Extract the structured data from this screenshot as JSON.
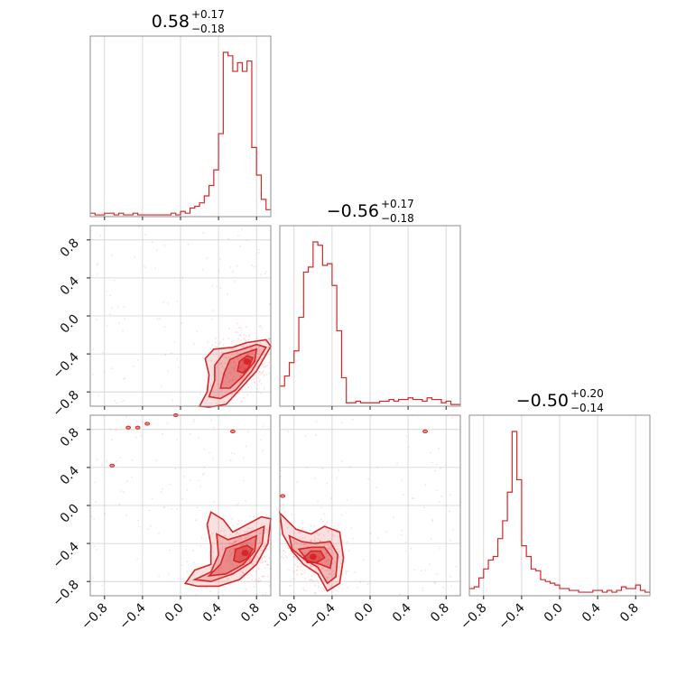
{
  "chart_data": {
    "type": "corner",
    "parameters": [
      {
        "title_value": "0.58",
        "title_plus": "+0.17",
        "title_minus": "−0.18"
      },
      {
        "title_value": "−0.56",
        "title_plus": "+0.17",
        "title_minus": "−0.18"
      },
      {
        "title_value": "−0.50",
        "title_plus": "+0.20",
        "title_minus": "−0.14"
      }
    ],
    "axis_range": [
      -0.95,
      0.95
    ],
    "ticks": [
      -0.8,
      -0.4,
      0.0,
      0.4,
      0.8
    ],
    "tick_labels": [
      "−0.8",
      "−0.4",
      "0.0",
      "0.4",
      "0.8"
    ],
    "grid": true,
    "color": "#d62728",
    "histograms": [
      {
        "param": 0,
        "bin_edges": [
          -0.95,
          -0.9,
          -0.85,
          -0.8,
          -0.75,
          -0.7,
          -0.65,
          -0.6,
          -0.55,
          -0.5,
          -0.45,
          -0.4,
          -0.35,
          -0.3,
          -0.25,
          -0.2,
          -0.15,
          -0.1,
          -0.05,
          0.0,
          0.05,
          0.1,
          0.15,
          0.2,
          0.25,
          0.3,
          0.35,
          0.4,
          0.45,
          0.5,
          0.55,
          0.6,
          0.65,
          0.7,
          0.75,
          0.8,
          0.85,
          0.9,
          0.95
        ],
        "counts": [
          2,
          1,
          1,
          2,
          2,
          1,
          2,
          1,
          1,
          2,
          1,
          1,
          1,
          1,
          1,
          1,
          1,
          2,
          1,
          3,
          2,
          5,
          6,
          8,
          12,
          18,
          27,
          48,
          95,
          93,
          84,
          89,
          84,
          90,
          40,
          24,
          10,
          4
        ]
      },
      {
        "param": 1,
        "bin_edges": [
          -0.95,
          -0.9,
          -0.85,
          -0.8,
          -0.75,
          -0.7,
          -0.65,
          -0.6,
          -0.55,
          -0.5,
          -0.45,
          -0.4,
          -0.35,
          -0.3,
          -0.25,
          -0.2,
          -0.15,
          -0.1,
          -0.05,
          0.0,
          0.05,
          0.1,
          0.15,
          0.2,
          0.25,
          0.3,
          0.35,
          0.4,
          0.45,
          0.5,
          0.55,
          0.6,
          0.65,
          0.7,
          0.75,
          0.8,
          0.85,
          0.9,
          0.95
        ],
        "counts": [
          12,
          18,
          26,
          33,
          53,
          80,
          83,
          98,
          96,
          84,
          85,
          72,
          45,
          17,
          2,
          2,
          3,
          2,
          2,
          2,
          2,
          3,
          3,
          4,
          3,
          4,
          4,
          5,
          4,
          4,
          3,
          5,
          4,
          4,
          2,
          3,
          1,
          1
        ]
      },
      {
        "param": 2,
        "bin_edges": [
          -0.95,
          -0.9,
          -0.85,
          -0.8,
          -0.75,
          -0.7,
          -0.65,
          -0.6,
          -0.55,
          -0.5,
          -0.45,
          -0.4,
          -0.35,
          -0.3,
          -0.25,
          -0.2,
          -0.15,
          -0.1,
          -0.05,
          0.0,
          0.05,
          0.1,
          0.15,
          0.2,
          0.25,
          0.3,
          0.35,
          0.4,
          0.45,
          0.5,
          0.55,
          0.6,
          0.65,
          0.7,
          0.75,
          0.8,
          0.85,
          0.9,
          0.95
        ],
        "counts": [
          4,
          5,
          10,
          15,
          20,
          22,
          32,
          42,
          58,
          92,
          65,
          28,
          22,
          15,
          14,
          9,
          8,
          7,
          6,
          4,
          4,
          3,
          3,
          2,
          2,
          2,
          3,
          3,
          2,
          3,
          2,
          3,
          5,
          4,
          4,
          6,
          3,
          2
        ]
      }
    ],
    "joint": [
      {
        "x_param": 0,
        "y_param": 1,
        "levels": [
          [
            [
              0.2,
              -0.95
            ],
            [
              0.28,
              -0.8
            ],
            [
              0.3,
              -0.62
            ],
            [
              0.26,
              -0.45
            ],
            [
              0.35,
              -0.35
            ],
            [
              0.55,
              -0.33
            ],
            [
              0.7,
              -0.28
            ],
            [
              0.9,
              -0.25
            ],
            [
              0.95,
              -0.32
            ],
            [
              0.8,
              -0.58
            ],
            [
              0.6,
              -0.8
            ],
            [
              0.48,
              -0.93
            ],
            [
              0.3,
              -0.96
            ]
          ],
          [
            [
              0.3,
              -0.85
            ],
            [
              0.36,
              -0.68
            ],
            [
              0.36,
              -0.52
            ],
            [
              0.45,
              -0.4
            ],
            [
              0.62,
              -0.36
            ],
            [
              0.8,
              -0.3
            ],
            [
              0.9,
              -0.33
            ],
            [
              0.75,
              -0.58
            ],
            [
              0.58,
              -0.78
            ],
            [
              0.42,
              -0.87
            ]
          ],
          [
            [
              0.42,
              -0.76
            ],
            [
              0.46,
              -0.6
            ],
            [
              0.52,
              -0.46
            ],
            [
              0.65,
              -0.4
            ],
            [
              0.8,
              -0.35
            ],
            [
              0.78,
              -0.48
            ],
            [
              0.65,
              -0.64
            ],
            [
              0.52,
              -0.76
            ]
          ],
          [
            [
              0.6,
              -0.58
            ],
            [
              0.62,
              -0.48
            ],
            [
              0.7,
              -0.42
            ],
            [
              0.76,
              -0.44
            ],
            [
              0.72,
              -0.54
            ],
            [
              0.66,
              -0.6
            ]
          ]
        ],
        "peak": [
          0.7,
          -0.48
        ],
        "outlier_contours": []
      },
      {
        "x_param": 0,
        "y_param": 2,
        "levels": [
          [
            [
              0.05,
              -0.82
            ],
            [
              0.15,
              -0.68
            ],
            [
              0.32,
              -0.62
            ],
            [
              0.32,
              -0.42
            ],
            [
              0.28,
              -0.2
            ],
            [
              0.32,
              -0.07
            ],
            [
              0.45,
              -0.15
            ],
            [
              0.55,
              -0.28
            ],
            [
              0.7,
              -0.2
            ],
            [
              0.85,
              -0.12
            ],
            [
              0.95,
              -0.14
            ],
            [
              0.92,
              -0.4
            ],
            [
              0.8,
              -0.62
            ],
            [
              0.62,
              -0.78
            ],
            [
              0.4,
              -0.85
            ],
            [
              0.18,
              -0.85
            ]
          ],
          [
            [
              0.15,
              -0.78
            ],
            [
              0.32,
              -0.7
            ],
            [
              0.4,
              -0.52
            ],
            [
              0.38,
              -0.3
            ],
            [
              0.5,
              -0.36
            ],
            [
              0.7,
              -0.3
            ],
            [
              0.88,
              -0.22
            ],
            [
              0.86,
              -0.4
            ],
            [
              0.74,
              -0.6
            ],
            [
              0.55,
              -0.72
            ],
            [
              0.32,
              -0.8
            ]
          ],
          [
            [
              0.3,
              -0.74
            ],
            [
              0.42,
              -0.62
            ],
            [
              0.48,
              -0.45
            ],
            [
              0.62,
              -0.4
            ],
            [
              0.8,
              -0.32
            ],
            [
              0.78,
              -0.48
            ],
            [
              0.66,
              -0.62
            ],
            [
              0.48,
              -0.72
            ]
          ],
          [
            [
              0.56,
              -0.58
            ],
            [
              0.58,
              -0.46
            ],
            [
              0.7,
              -0.42
            ],
            [
              0.76,
              -0.46
            ],
            [
              0.7,
              -0.56
            ],
            [
              0.62,
              -0.6
            ]
          ]
        ],
        "peak": [
          0.68,
          -0.5
        ],
        "outlier_contours": [
          [
            -0.55,
            0.82
          ],
          [
            -0.45,
            0.82
          ],
          [
            -0.35,
            0.86
          ],
          [
            -0.05,
            0.95
          ],
          [
            -0.72,
            0.42
          ],
          [
            0.55,
            0.78
          ]
        ]
      },
      {
        "x_param": 1,
        "y_param": 2,
        "levels": [
          [
            [
              -0.95,
              -0.08
            ],
            [
              -0.88,
              -0.15
            ],
            [
              -0.78,
              -0.25
            ],
            [
              -0.62,
              -0.3
            ],
            [
              -0.48,
              -0.22
            ],
            [
              -0.32,
              -0.28
            ],
            [
              -0.28,
              -0.55
            ],
            [
              -0.32,
              -0.82
            ],
            [
              -0.45,
              -0.9
            ],
            [
              -0.55,
              -0.72
            ],
            [
              -0.7,
              -0.62
            ],
            [
              -0.82,
              -0.48
            ],
            [
              -0.92,
              -0.3
            ]
          ],
          [
            [
              -0.85,
              -0.32
            ],
            [
              -0.72,
              -0.38
            ],
            [
              -0.58,
              -0.4
            ],
            [
              -0.42,
              -0.38
            ],
            [
              -0.34,
              -0.52
            ],
            [
              -0.36,
              -0.75
            ],
            [
              -0.45,
              -0.82
            ],
            [
              -0.55,
              -0.65
            ],
            [
              -0.7,
              -0.56
            ],
            [
              -0.82,
              -0.46
            ]
          ],
          [
            [
              -0.75,
              -0.46
            ],
            [
              -0.62,
              -0.44
            ],
            [
              -0.48,
              -0.44
            ],
            [
              -0.4,
              -0.55
            ],
            [
              -0.42,
              -0.66
            ],
            [
              -0.52,
              -0.62
            ],
            [
              -0.66,
              -0.58
            ]
          ],
          [
            [
              -0.7,
              -0.55
            ],
            [
              -0.62,
              -0.48
            ],
            [
              -0.52,
              -0.48
            ],
            [
              -0.48,
              -0.55
            ],
            [
              -0.56,
              -0.6
            ],
            [
              -0.66,
              -0.6
            ]
          ]
        ],
        "peak": [
          -0.6,
          -0.54
        ],
        "outlier_contours": [
          [
            -0.92,
            0.1
          ],
          [
            0.58,
            0.78
          ]
        ]
      }
    ]
  }
}
